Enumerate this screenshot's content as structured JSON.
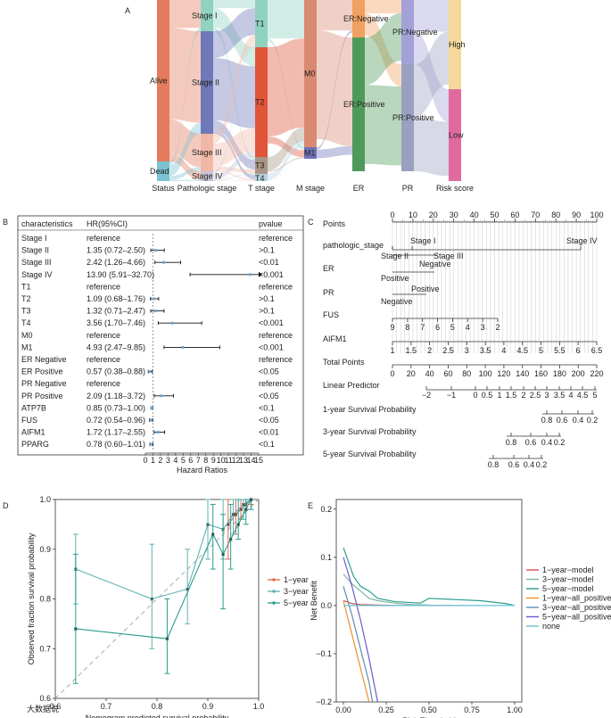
{
  "panels": [
    "A",
    "B",
    "C",
    "D",
    "E"
  ],
  "watermark": "大数据说",
  "panelA": {
    "columns": [
      "Status",
      "Pathologic stage",
      "T stage",
      "M stage",
      "ER",
      "PR",
      "Risk score"
    ],
    "nodes": {
      "status": [
        "Alive",
        "Dead"
      ],
      "stage": [
        "Stage I",
        "Stage II",
        "Stage III",
        "Stage IV"
      ],
      "t": [
        "T1",
        "T2",
        "T3",
        "T4"
      ],
      "m": [
        "M0",
        "M1"
      ],
      "er": [
        "ER:Negative",
        "ER:Positive"
      ],
      "pr": [
        "PR:Negative",
        "PR:Positive"
      ],
      "risk": [
        "High",
        "Low"
      ]
    }
  },
  "panelB": {
    "headers": {
      "char": "characteristics",
      "hr": "HR(95%CI)",
      "p": "pvalue"
    },
    "xlabel": "Hazard Ratios",
    "ticks": [
      "0",
      "1",
      "2",
      "3",
      "4",
      "5",
      "6",
      "7",
      "8",
      "9",
      "10",
      "11",
      "12",
      "13",
      "14",
      "15"
    ],
    "rows": [
      {
        "name": "Stage I",
        "hr": "reference",
        "p": "reference",
        "est": null,
        "lo": null,
        "hi": null
      },
      {
        "name": "Stage II",
        "hr": "1.35 (0.72–2.50)",
        "p": ">0.1",
        "est": 1.35,
        "lo": 0.72,
        "hi": 2.5
      },
      {
        "name": "Stage III",
        "hr": "2.42 (1.26–4.66)",
        "p": "<0.01",
        "est": 2.42,
        "lo": 1.26,
        "hi": 4.66
      },
      {
        "name": "Stage IV",
        "hr": "13.90 (5.91–32.70)",
        "p": "<0.001",
        "est": 13.9,
        "lo": 5.91,
        "hi": 32.7
      },
      {
        "name": "T1",
        "hr": "reference",
        "p": "reference",
        "est": null,
        "lo": null,
        "hi": null
      },
      {
        "name": "T2",
        "hr": "1.09 (0.68–1.76)",
        "p": ">0.1",
        "est": 1.09,
        "lo": 0.68,
        "hi": 1.76
      },
      {
        "name": "T3",
        "hr": "1.32 (0.71–2.47)",
        "p": ">0.1",
        "est": 1.32,
        "lo": 0.71,
        "hi": 2.47
      },
      {
        "name": "T4",
        "hr": "3.56 (1.70–7.46)",
        "p": "<0.001",
        "est": 3.56,
        "lo": 1.7,
        "hi": 7.46
      },
      {
        "name": "M0",
        "hr": "reference",
        "p": "reference",
        "est": null,
        "lo": null,
        "hi": null
      },
      {
        "name": "M1",
        "hr": "4.93 (2.47–9.85)",
        "p": "<0.001",
        "est": 4.93,
        "lo": 2.47,
        "hi": 9.85
      },
      {
        "name": "ER Negative",
        "hr": "reference",
        "p": "reference",
        "est": null,
        "lo": null,
        "hi": null
      },
      {
        "name": "ER Positive",
        "hr": "0.57 (0.38–0.88)",
        "p": "<0.05",
        "est": 0.57,
        "lo": 0.38,
        "hi": 0.88
      },
      {
        "name": "PR Negative",
        "hr": "reference",
        "p": "reference",
        "est": null,
        "lo": null,
        "hi": null
      },
      {
        "name": "PR Positive",
        "hr": "2.09 (1.18–3.72)",
        "p": "<0.05",
        "est": 2.09,
        "lo": 1.18,
        "hi": 3.72
      },
      {
        "name": "ATP7B",
        "hr": "0.85 (0.73–1.00)",
        "p": "<0.1",
        "est": 0.85,
        "lo": 0.73,
        "hi": 1.0
      },
      {
        "name": "FUS",
        "hr": "0.72 (0.54–0.96)",
        "p": "<0.05",
        "est": 0.72,
        "lo": 0.54,
        "hi": 0.96
      },
      {
        "name": "AIFM1",
        "hr": "1.72 (1.17–2.55)",
        "p": "<0.01",
        "est": 1.72,
        "lo": 1.17,
        "hi": 2.55
      },
      {
        "name": "PPARG",
        "hr": "0.78 (0.60–1.01)",
        "p": "<0.1",
        "est": 0.78,
        "lo": 0.6,
        "hi": 1.01
      }
    ]
  },
  "panelC": {
    "rows": [
      {
        "label": "Points",
        "ticks": [
          "0",
          "10",
          "20",
          "30",
          "40",
          "50",
          "60",
          "70",
          "80",
          "90",
          "100"
        ]
      },
      {
        "label": "pathologic_stage",
        "levels": [
          "Stage I",
          "Stage IV",
          "Stage II",
          "Stage III"
        ]
      },
      {
        "label": "ER",
        "levels": [
          "Negative",
          "Positive"
        ]
      },
      {
        "label": "PR",
        "levels": [
          "Positive",
          "Negative"
        ]
      },
      {
        "label": "FUS",
        "ticks": [
          "9",
          "8",
          "7",
          "6",
          "5",
          "4",
          "3",
          "2"
        ]
      },
      {
        "label": "AIFM1",
        "ticks": [
          "1",
          "1.5",
          "2",
          "2.5",
          "3",
          "3.5",
          "4",
          "4.5",
          "5",
          "5.5",
          "6",
          "6.5"
        ]
      },
      {
        "label": "Total Points",
        "ticks": [
          "0",
          "20",
          "40",
          "60",
          "80",
          "100",
          "120",
          "140",
          "160",
          "180",
          "200",
          "220"
        ]
      },
      {
        "label": "Linear Predictor",
        "ticks": [
          "−2",
          "−1",
          "0",
          "0.5",
          "1",
          "1.5",
          "2",
          "2.5",
          "3",
          "3.5",
          "4",
          "4.5",
          "5"
        ]
      },
      {
        "label": "1-year Survival Probability",
        "ticks": [
          "0.8",
          "0.6",
          "0.4",
          "0.2"
        ]
      },
      {
        "label": "3-year Survival Probability",
        "ticks": [
          "0.8",
          "0.6",
          "0.4",
          "0.2"
        ]
      },
      {
        "label": "5-year Survival Probability",
        "ticks": [
          "0.8",
          "0.6",
          "0.4",
          "0.2"
        ]
      }
    ]
  },
  "chart_data": [
    {
      "type": "line",
      "panel": "D",
      "title": "",
      "xlabel": "Nomogram predicted survival probability",
      "ylabel": "Observed fraction survival probability",
      "xlim": [
        0.6,
        1.0
      ],
      "ylim": [
        0.6,
        1.0
      ],
      "xticks": [
        "0.6",
        "0.7",
        "0.8",
        "0.9",
        "1.0"
      ],
      "yticks": [
        "0.6",
        "0.7",
        "0.8",
        "0.9",
        "1.0"
      ],
      "legend": [
        "1−year",
        "3−year",
        "5−year"
      ],
      "colors": [
        "#e06a4f",
        "#5fb3b3",
        "#2a9d8f"
      ],
      "series": [
        {
          "name": "1−year",
          "x": [
            0.94,
            0.955,
            0.965,
            0.975,
            0.985
          ],
          "y": [
            0.95,
            0.97,
            0.98,
            0.99,
            1.0
          ],
          "lo": [
            0.88,
            0.93,
            0.96,
            0.98,
            0.99
          ],
          "hi": [
            1.0,
            1.0,
            1.0,
            1.0,
            1.0
          ]
        },
        {
          "name": "3−year",
          "x": [
            0.64,
            0.79,
            0.86,
            0.9,
            0.93,
            0.95,
            0.97,
            0.985
          ],
          "y": [
            0.86,
            0.8,
            0.82,
            0.95,
            0.94,
            0.97,
            0.99,
            1.0
          ],
          "lo": [
            0.79,
            0.7,
            0.75,
            0.88,
            0.88,
            0.93,
            0.96,
            0.98
          ],
          "hi": [
            0.93,
            0.91,
            0.9,
            1.0,
            1.0,
            1.0,
            1.0,
            1.0
          ]
        },
        {
          "name": "5−year",
          "x": [
            0.64,
            0.82,
            0.91,
            0.93,
            0.945,
            0.96,
            0.975,
            0.985
          ],
          "y": [
            0.74,
            0.72,
            0.93,
            0.89,
            0.92,
            0.95,
            0.98,
            1.0
          ],
          "lo": [
            0.63,
            0.65,
            0.86,
            0.78,
            0.86,
            0.92,
            0.95,
            0.98
          ],
          "hi": [
            0.89,
            0.8,
            0.99,
            0.97,
            0.99,
            1.0,
            1.0,
            1.0
          ]
        }
      ]
    },
    {
      "type": "line",
      "panel": "E",
      "title": "",
      "xlabel": "Risk Threshold",
      "ylabel": "Net Benefit",
      "xlim": [
        0,
        1
      ],
      "ylim": [
        -0.2,
        0.22
      ],
      "xticks": [
        "0.00",
        "0.25",
        "0.50",
        "0.75",
        "1.00"
      ],
      "yticks": [
        "−0.2",
        "−0.1",
        "0.0",
        "0.1",
        "0.2"
      ],
      "legend": [
        "1−year−model",
        "3−year−model",
        "5−year−model",
        "1−year−all_positive",
        "3−year−all_positive",
        "5−year−all_positive",
        "none"
      ],
      "colors": [
        "#d9534f",
        "#7ab8a0",
        "#2a9d8f",
        "#f28e2b",
        "#5b8fb9",
        "#6a5acd",
        "#66c2d6"
      ],
      "series": [
        {
          "name": "1−year−model",
          "x": [
            0,
            0.02,
            0.05,
            0.1,
            0.2,
            0.3,
            0.5,
            0.7
          ],
          "y": [
            0.01,
            0.008,
            0.004,
            0.002,
            0.001,
            0.0,
            0.0,
            0.0
          ]
        },
        {
          "name": "3−year−model",
          "x": [
            0,
            0.05,
            0.1,
            0.15,
            0.2,
            0.3,
            0.4,
            0.5
          ],
          "y": [
            0.065,
            0.045,
            0.03,
            0.015,
            0.01,
            0.005,
            0.002,
            0.001
          ]
        },
        {
          "name": "5−year−model",
          "x": [
            0,
            0.03,
            0.06,
            0.1,
            0.15,
            0.2,
            0.3,
            0.45,
            0.5,
            0.8,
            0.95,
            1.0
          ],
          "y": [
            0.12,
            0.09,
            0.06,
            0.04,
            0.03,
            0.015,
            0.008,
            0.005,
            0.015,
            0.01,
            0.004,
            0.0
          ]
        },
        {
          "name": "1−year−all_positive",
          "x": [
            0,
            0.05,
            0.1,
            0.15
          ],
          "y": [
            0.01,
            -0.06,
            -0.13,
            -0.2
          ]
        },
        {
          "name": "3−year−all_positive",
          "x": [
            0,
            0.05,
            0.1,
            0.15,
            0.17
          ],
          "y": [
            0.04,
            -0.02,
            -0.09,
            -0.16,
            -0.2
          ]
        },
        {
          "name": "5−year−all_positive",
          "x": [
            0,
            0.05,
            0.1,
            0.15,
            0.2
          ],
          "y": [
            0.1,
            0.04,
            -0.03,
            -0.11,
            -0.2
          ]
        },
        {
          "name": "none",
          "x": [
            0,
            1
          ],
          "y": [
            0,
            0
          ]
        }
      ]
    }
  ]
}
